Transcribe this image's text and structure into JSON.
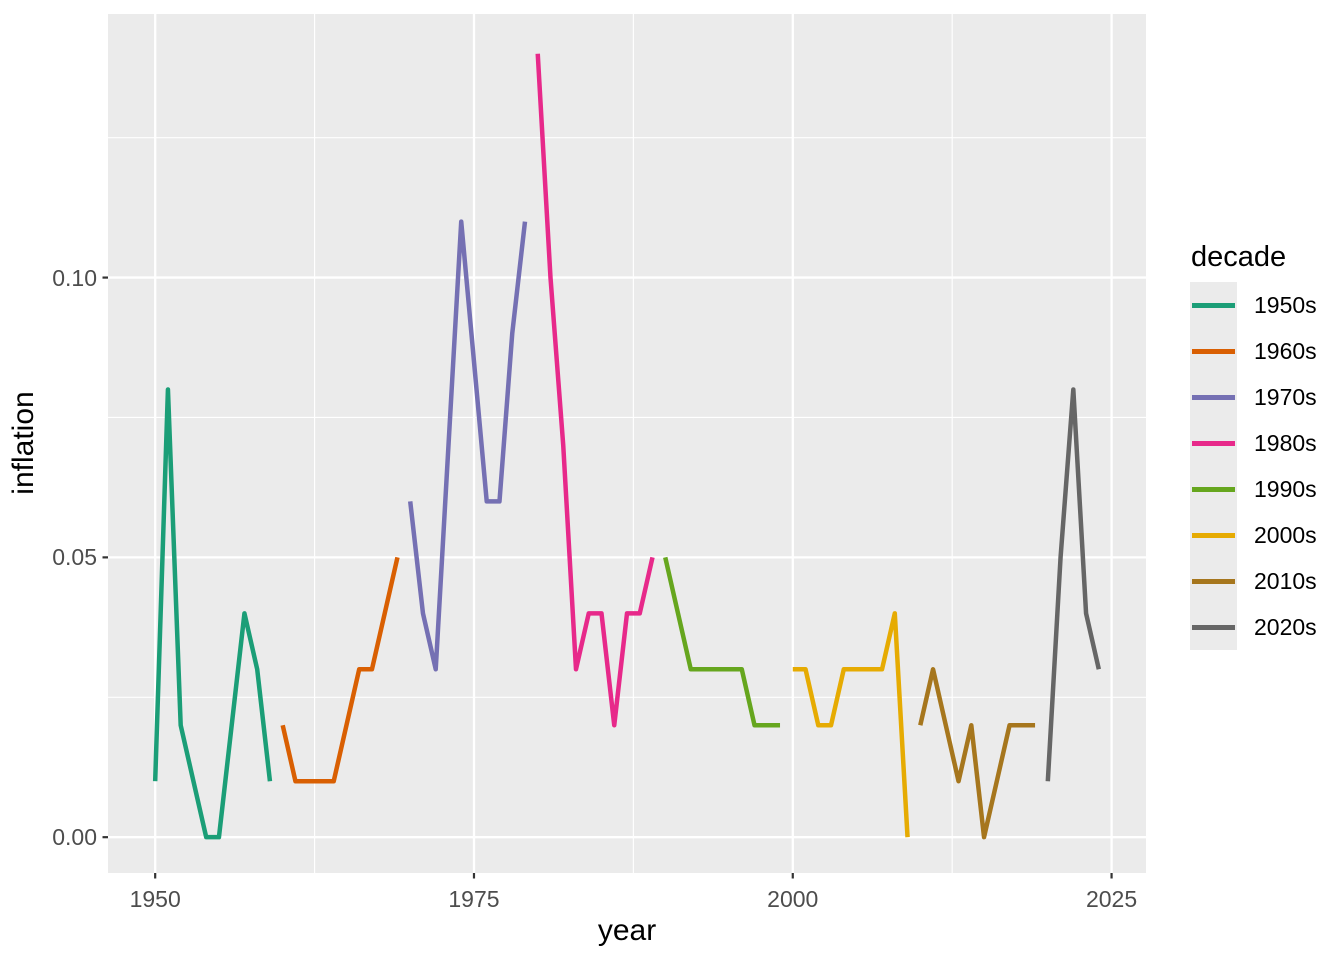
{
  "chart_data": {
    "type": "line",
    "title": "",
    "xlabel": "year",
    "ylabel": "inflation",
    "grid": true,
    "legend": {
      "title": "decade",
      "position": "right",
      "entries": [
        "1950s",
        "1960s",
        "1970s",
        "1980s",
        "1990s",
        "2000s",
        "2010s",
        "2020s"
      ]
    },
    "x_axis": {
      "range": [
        1946.3,
        2027.7
      ],
      "ticks": [
        1950,
        1975,
        2000,
        2025
      ],
      "tick_labels": [
        "1950",
        "1975",
        "2000",
        "2025"
      ],
      "minor_ticks": [
        1962.5,
        1987.5,
        2012.5
      ]
    },
    "y_axis": {
      "range": [
        -0.0064,
        0.1471
      ],
      "ticks": [
        0.0,
        0.05,
        0.1
      ],
      "tick_labels": [
        "0.00",
        "0.05",
        "0.10"
      ],
      "minor_ticks": [
        0.025,
        0.075,
        0.125
      ]
    },
    "series": [
      {
        "name": "1950s",
        "color": "#1B9E77",
        "x": [
          1950,
          1951,
          1952,
          1953,
          1954,
          1955,
          1956,
          1957,
          1958,
          1959
        ],
        "values": [
          0.01,
          0.08,
          0.02,
          0.01,
          0.0,
          0.0,
          0.02,
          0.04,
          0.03,
          0.01
        ]
      },
      {
        "name": "1960s",
        "color": "#D95F02",
        "x": [
          1960,
          1961,
          1962,
          1963,
          1964,
          1965,
          1966,
          1967,
          1968,
          1969
        ],
        "values": [
          0.02,
          0.01,
          0.01,
          0.01,
          0.01,
          0.02,
          0.03,
          0.03,
          0.04,
          0.05
        ]
      },
      {
        "name": "1970s",
        "color": "#7570B3",
        "x": [
          1970,
          1971,
          1972,
          1973,
          1974,
          1975,
          1976,
          1977,
          1978,
          1979
        ],
        "values": [
          0.06,
          0.04,
          0.03,
          0.07,
          0.11,
          0.085,
          0.06,
          0.06,
          0.09,
          0.11
        ]
      },
      {
        "name": "1980s",
        "color": "#E7298A",
        "x": [
          1980,
          1981,
          1982,
          1983,
          1984,
          1985,
          1986,
          1987,
          1988,
          1989
        ],
        "values": [
          0.14,
          0.1,
          0.07,
          0.03,
          0.04,
          0.04,
          0.02,
          0.04,
          0.04,
          0.05
        ]
      },
      {
        "name": "1990s",
        "color": "#66A61E",
        "x": [
          1990,
          1991,
          1992,
          1993,
          1994,
          1995,
          1996,
          1997,
          1998,
          1999
        ],
        "values": [
          0.05,
          0.04,
          0.03,
          0.03,
          0.03,
          0.03,
          0.03,
          0.02,
          0.02,
          0.02
        ]
      },
      {
        "name": "2000s",
        "color": "#E6AB02",
        "x": [
          2000,
          2001,
          2002,
          2003,
          2004,
          2005,
          2006,
          2007,
          2008,
          2009
        ],
        "values": [
          0.03,
          0.03,
          0.02,
          0.02,
          0.03,
          0.03,
          0.03,
          0.03,
          0.04,
          0.0
        ]
      },
      {
        "name": "2010s",
        "color": "#A6761D",
        "x": [
          2010,
          2011,
          2012,
          2013,
          2014,
          2015,
          2016,
          2017,
          2018,
          2019
        ],
        "values": [
          0.02,
          0.03,
          0.02,
          0.01,
          0.02,
          0.0,
          0.01,
          0.02,
          0.02,
          0.02
        ]
      },
      {
        "name": "2020s",
        "color": "#666666",
        "x": [
          2020,
          2021,
          2022,
          2023,
          2024
        ],
        "values": [
          0.01,
          0.05,
          0.08,
          0.04,
          0.03
        ]
      }
    ],
    "colors": {
      "panel_background": "#EBEBEB",
      "gridline": "#FFFFFF",
      "tick_mark": "#333333",
      "tick_label_text": "#4D4D4D",
      "axis_title_text": "#000000",
      "legend_key_background": "#EBEBEB"
    }
  }
}
